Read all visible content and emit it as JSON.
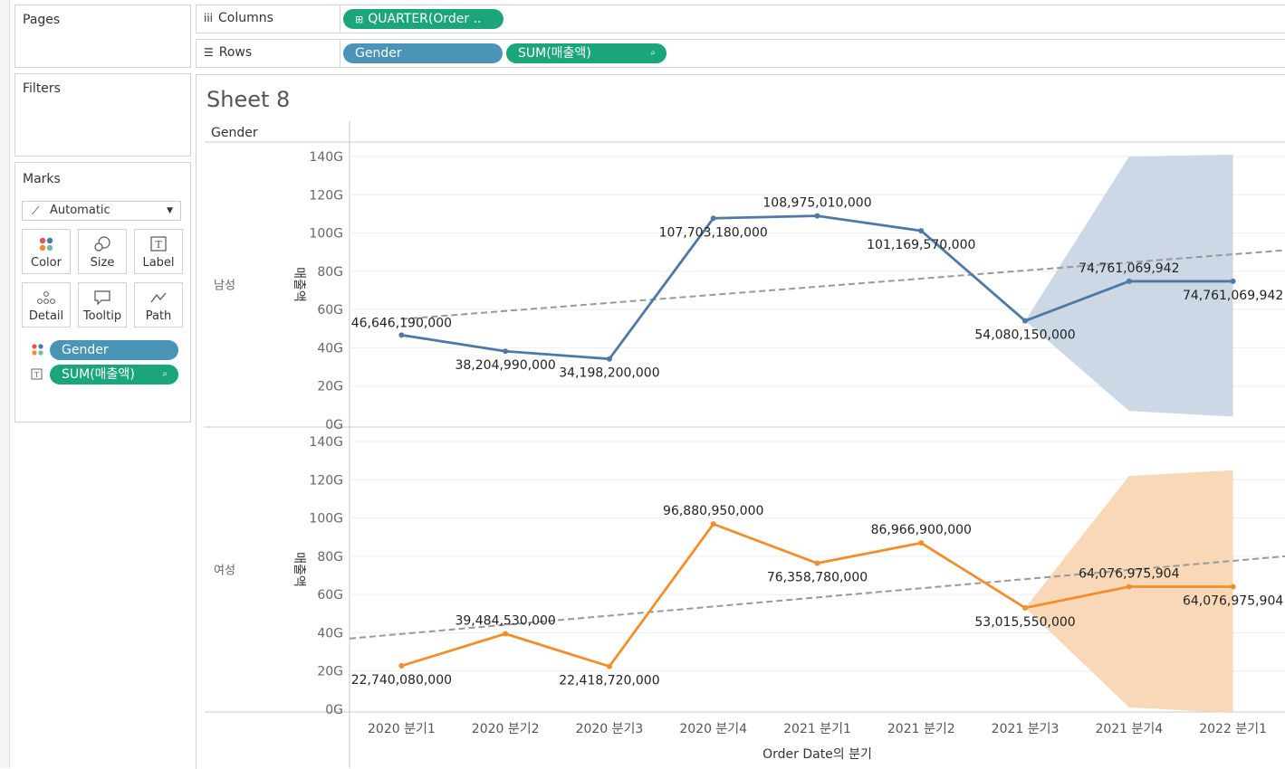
{
  "pages": {
    "title": "Pages"
  },
  "filters": {
    "title": "Filters"
  },
  "marks": {
    "title": "Marks",
    "mark_type": "Automatic",
    "buttons": [
      "Color",
      "Size",
      "Label",
      "Detail",
      "Tooltip",
      "Path"
    ],
    "fields": [
      "Gender",
      "SUM(매출액)"
    ]
  },
  "shelves": {
    "columns_label": "Columns",
    "columns_pill": "QUARTER(Order ..",
    "rows_label": "Rows",
    "rows_pills": [
      "Gender",
      "SUM(매출액)"
    ]
  },
  "sheet": {
    "title": "Sheet 8",
    "row_header": "Gender"
  },
  "colors": {
    "male": "#4e79a7",
    "female": "#f28e2b",
    "male_band": "#c9d6e4",
    "female_band": "#f9d6b3",
    "trend": "#999999",
    "green_pill": "#1aa57a",
    "blue_pill": "#4a94b8"
  },
  "chart_data": {
    "type": "line",
    "xlabel": "Order Date의 분기",
    "ylabel": "매출액",
    "categories": [
      "2020 분기1",
      "2020 분기2",
      "2020 분기3",
      "2020 분기4",
      "2021 분기1",
      "2021 분기2",
      "2021 분기3",
      "2021 분기4",
      "2022 분기1"
    ],
    "yticks": [
      "0G",
      "20G",
      "40G",
      "60G",
      "80G",
      "100G",
      "120G",
      "140G"
    ],
    "ylim": [
      0,
      145000000000
    ],
    "series": [
      {
        "name": "남성",
        "values": [
          46646190000,
          38204990000,
          34198200000,
          107703180000,
          108975010000,
          101169570000,
          54080150000,
          74761069942,
          74761069942
        ],
        "labels": [
          "46,646,190,000",
          "38,204,990,000",
          "34,198,200,000",
          "107,703,180,000",
          "108,975,010,000",
          "101,169,570,000",
          "54,080,150,000",
          "74,761,069,942",
          "74,761,069,942"
        ],
        "forecast_band": {
          "x": [
            6,
            7,
            8
          ],
          "upper": [
            54080150000,
            140000000000,
            141000000000
          ],
          "lower": [
            54080150000,
            7000000000,
            4000000000
          ]
        },
        "trend": {
          "start": 55000000000,
          "end": 91000000000
        }
      },
      {
        "name": "여성",
        "values": [
          22740080000,
          39484530000,
          22418720000,
          96880950000,
          76358780000,
          86966900000,
          53015550000,
          64076975904,
          64076975904
        ],
        "labels": [
          "22,740,080,000",
          "39,484,530,000",
          "22,418,720,000",
          "96,880,950,000",
          "76,358,780,000",
          "86,966,900,000",
          "53,015,550,000",
          "64,076,975,904",
          "64,076,975,904"
        ],
        "forecast_band": {
          "x": [
            6,
            7,
            8
          ],
          "upper": [
            53015550000,
            122000000000,
            125000000000
          ],
          "lower": [
            53015550000,
            1000000000,
            -2000000000
          ]
        },
        "trend": {
          "start": 37000000000,
          "end": 80000000000
        }
      }
    ]
  }
}
